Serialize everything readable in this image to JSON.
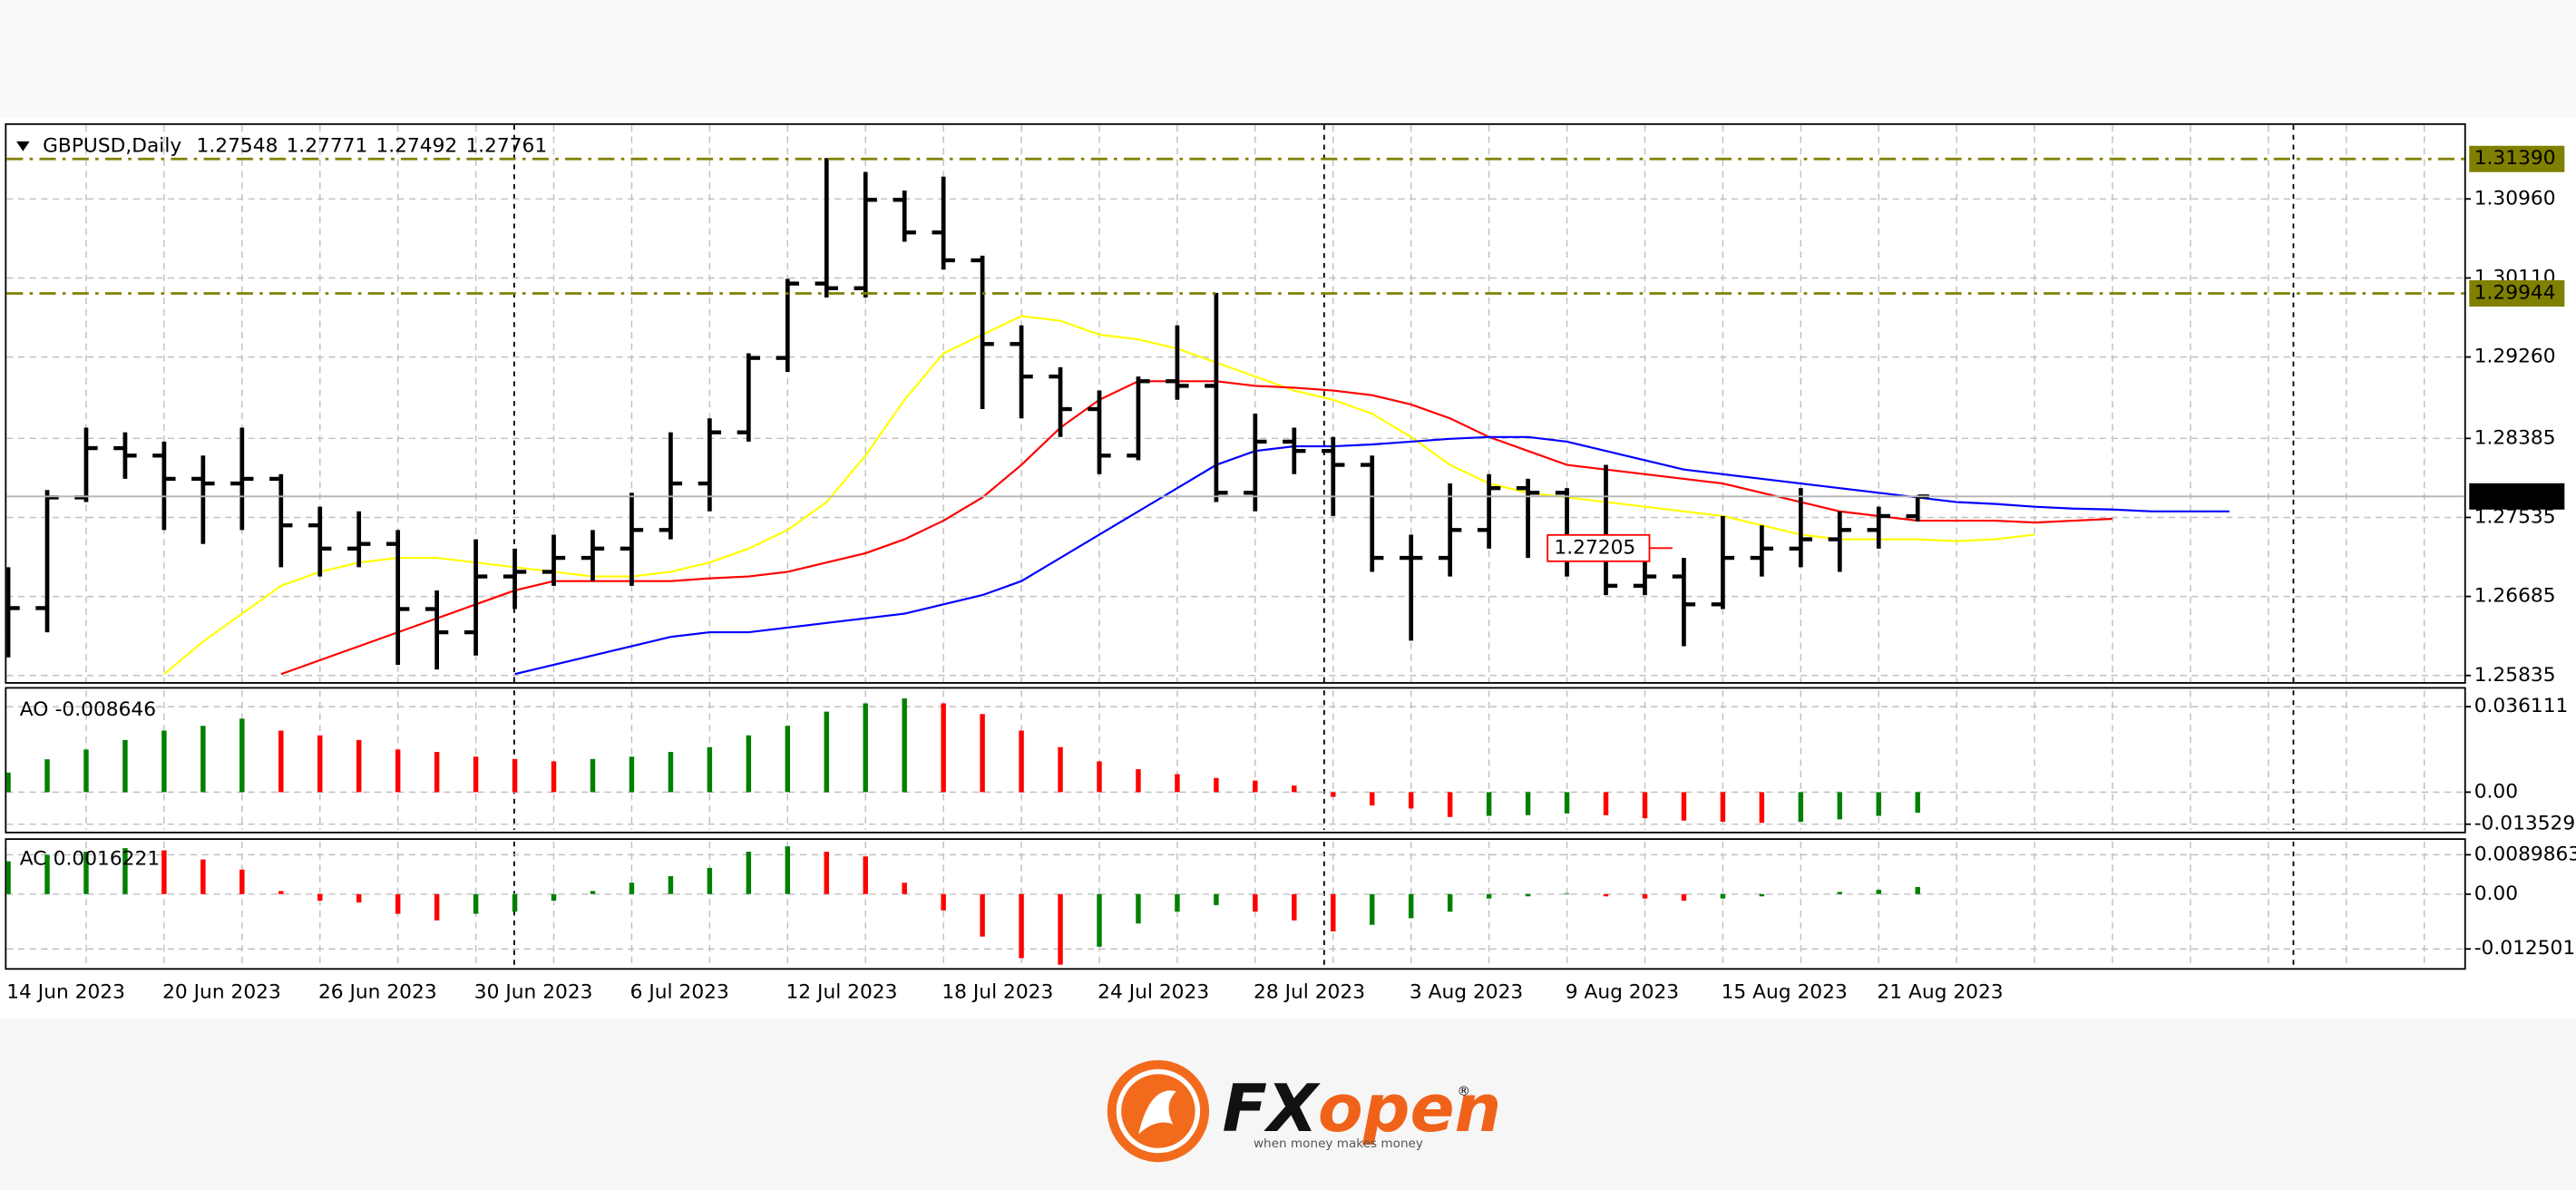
{
  "chart_data": [
    {
      "type": "ohlc",
      "symbol": "GBPUSD,Daily",
      "color": "#000000",
      "grid": true,
      "categories": [
        "14 Jun 2023",
        null,
        null,
        null,
        "20 Jun 2023",
        null,
        null,
        null,
        "26 Jun 2023",
        null,
        null,
        null,
        "30 Jun 2023",
        null,
        null,
        null,
        "6 Jul 2023",
        null,
        null,
        null,
        "12 Jul 2023",
        null,
        null,
        null,
        "18 Jul 2023",
        null,
        null,
        null,
        "24 Jul 2023",
        null,
        null,
        null,
        "28 Jul 2023",
        null,
        null,
        null,
        "3 Aug 2023",
        null,
        null,
        null,
        "9 Aug 2023",
        null,
        null,
        null,
        "15 Aug 2023",
        null,
        null,
        null,
        "21 Aug 2023",
        null,
        null,
        null,
        null,
        null,
        null,
        null,
        null,
        null
      ],
      "open": [
        1.263,
        1.2656,
        1.2775,
        1.2828,
        1.282,
        1.2795,
        1.279,
        1.2795,
        1.2745,
        1.272,
        1.2725,
        1.2655,
        1.263,
        1.269,
        1.2695,
        1.271,
        1.272,
        1.274,
        1.279,
        1.2845,
        1.2925,
        1.3005,
        1.3,
        1.3095,
        1.306,
        1.303,
        1.294,
        1.2905,
        1.287,
        1.282,
        1.29,
        1.2895,
        1.278,
        1.2835,
        1.2825,
        1.281,
        1.271,
        1.271,
        1.274,
        1.2785,
        1.278,
        1.272,
        1.268,
        1.269,
        1.266,
        1.271,
        1.272,
        1.273,
        1.274,
        1.27548,
        null,
        null,
        null,
        null,
        null,
        null,
        null,
        null
      ],
      "high": [
        1.27,
        1.2783,
        1.285,
        1.2845,
        1.2835,
        1.282,
        1.285,
        1.28,
        1.2765,
        1.276,
        1.274,
        1.2675,
        1.273,
        1.272,
        1.2735,
        1.274,
        1.278,
        1.2845,
        1.286,
        1.293,
        1.301,
        1.314,
        1.3125,
        1.3105,
        1.312,
        1.3035,
        1.296,
        1.2915,
        1.289,
        1.2905,
        1.296,
        1.2995,
        1.2865,
        1.285,
        1.284,
        1.282,
        1.2735,
        1.279,
        1.28,
        1.2795,
        1.2785,
        1.281,
        1.272,
        1.271,
        1.2755,
        1.2745,
        1.2785,
        1.276,
        1.2765,
        1.27771,
        null,
        null,
        null,
        null,
        null,
        null,
        null,
        null
      ],
      "low": [
        1.2603,
        1.263,
        1.277,
        1.2795,
        1.274,
        1.2725,
        1.274,
        1.27,
        1.269,
        1.27,
        1.2595,
        1.259,
        1.2605,
        1.2655,
        1.268,
        1.2685,
        1.268,
        1.273,
        1.276,
        1.2835,
        1.291,
        1.299,
        1.299,
        1.305,
        1.302,
        1.287,
        1.286,
        1.284,
        1.28,
        1.2815,
        1.288,
        1.277,
        1.276,
        1.28,
        1.2755,
        1.2695,
        1.2621,
        1.269,
        1.272,
        1.271,
        1.269,
        1.267,
        1.267,
        1.2615,
        1.2655,
        1.269,
        1.27,
        1.2695,
        1.272,
        1.27492,
        null,
        null,
        null,
        null,
        null,
        null,
        null,
        null
      ],
      "close": [
        1.2656,
        1.2775,
        1.2828,
        1.282,
        1.2795,
        1.279,
        1.2795,
        1.2745,
        1.272,
        1.2725,
        1.2655,
        1.263,
        1.269,
        1.2695,
        1.271,
        1.272,
        1.274,
        1.279,
        1.2845,
        1.2925,
        1.3005,
        1.3,
        1.3095,
        1.306,
        1.303,
        1.294,
        1.2905,
        1.287,
        1.282,
        1.29,
        1.2895,
        1.278,
        1.2835,
        1.2825,
        1.281,
        1.271,
        1.271,
        1.274,
        1.2785,
        1.278,
        1.272,
        1.268,
        1.269,
        1.266,
        1.271,
        1.272,
        1.273,
        1.274,
        1.2755,
        1.27761,
        null,
        null,
        null,
        null,
        null,
        null,
        null,
        null
      ],
      "series": [
        {
          "type": "line",
          "color": "#ffff00",
          "values": [
            null,
            null,
            null,
            null,
            1.2585,
            1.262,
            1.265,
            1.268,
            1.2695,
            1.2705,
            1.271,
            1.271,
            1.2705,
            1.27,
            1.2695,
            1.269,
            1.269,
            1.2695,
            1.2705,
            1.272,
            1.274,
            1.277,
            1.282,
            1.288,
            1.293,
            1.295,
            1.297,
            1.2965,
            1.295,
            1.2945,
            1.2935,
            1.292,
            1.2905,
            1.289,
            1.288,
            1.2865,
            1.284,
            1.281,
            1.279,
            1.278,
            1.2775,
            1.277,
            1.2765,
            1.276,
            1.2755,
            1.2745,
            1.2735,
            1.273,
            1.273,
            1.273,
            1.2728,
            1.273,
            1.2735,
            null,
            null,
            null,
            null,
            null
          ]
        },
        {
          "type": "line",
          "color": "#ff0000",
          "values": [
            null,
            null,
            null,
            null,
            null,
            null,
            null,
            1.2585,
            1.26,
            1.2615,
            1.263,
            1.2645,
            1.266,
            1.2675,
            1.2685,
            1.2685,
            1.2685,
            1.2685,
            1.2688,
            1.269,
            1.2695,
            1.2705,
            1.2715,
            1.273,
            1.275,
            1.2775,
            1.281,
            1.285,
            1.288,
            1.29,
            1.29,
            1.29,
            1.2895,
            1.2893,
            1.289,
            1.2885,
            1.2875,
            1.286,
            1.284,
            1.2825,
            1.281,
            1.2805,
            1.28,
            1.2795,
            1.279,
            1.278,
            1.277,
            1.276,
            1.2755,
            1.275,
            1.275,
            1.275,
            1.2748,
            1.275,
            1.2752,
            null,
            null,
            null
          ]
        },
        {
          "type": "line",
          "color": "#0000ff",
          "values": [
            null,
            null,
            null,
            null,
            null,
            null,
            null,
            null,
            null,
            null,
            null,
            null,
            null,
            1.2585,
            1.2595,
            1.2605,
            1.2615,
            1.2625,
            1.263,
            1.263,
            1.2635,
            1.264,
            1.2645,
            1.265,
            1.266,
            1.267,
            1.2685,
            1.271,
            1.2735,
            1.276,
            1.2785,
            1.281,
            1.2825,
            1.283,
            1.283,
            1.2832,
            1.2835,
            1.2838,
            1.284,
            1.284,
            1.2835,
            1.2825,
            1.2815,
            1.2805,
            1.28,
            1.2795,
            1.279,
            1.2785,
            1.278,
            1.2775,
            1.277,
            1.2768,
            1.2765,
            1.2763,
            1.2762,
            1.276,
            1.276,
            1.276
          ]
        }
      ],
      "ylim": [
        1.25764,
        1.31756
      ],
      "yticks": [
        {
          "value": 1.3096,
          "label": "1.30960"
        },
        {
          "value": 1.3011,
          "label": "1.30110"
        },
        {
          "value": 1.2926,
          "label": "1.29260"
        },
        1.28385,
        1.27535,
        1.26685,
        1.25835
      ],
      "levels": [
        {
          "value": 1.3139,
          "label": "1.31390",
          "color": "#808000"
        },
        {
          "value": 1.29944,
          "label": "1.29944",
          "color": "#808000"
        }
      ],
      "price_labels": [
        1.27205
      ],
      "price_label_color": "#ff0000"
    },
    {
      "type": "histogram",
      "name": "AO",
      "up_color": "#008000",
      "down_color": "#ff0000",
      "values": [
        0.0083,
        0.0139,
        0.018,
        0.022,
        0.026,
        0.028,
        0.031,
        0.026,
        0.024,
        0.022,
        0.018,
        0.017,
        0.015,
        0.014,
        0.013,
        0.014,
        0.015,
        0.017,
        0.019,
        0.024,
        0.028,
        0.034,
        0.0375,
        0.0396,
        0.0375,
        0.033,
        0.026,
        0.019,
        0.013,
        0.0097,
        0.0076,
        0.006,
        0.0049,
        0.0028,
        -0.002,
        -0.0056,
        -0.0069,
        -0.0105,
        -0.01,
        -0.0097,
        -0.009,
        -0.0097,
        -0.011,
        -0.012,
        -0.0125,
        -0.013,
        -0.0125,
        -0.0115,
        -0.01,
        -0.008646,
        null,
        null,
        null,
        null,
        null,
        null,
        null,
        null
      ],
      "ylim": [
        -0.016,
        0.043
      ],
      "yticks": [
        0.036111,
        {
          "value": 0,
          "label": "0.00"
        },
        -0.013529
      ]
    },
    {
      "type": "histogram",
      "name": "AC",
      "up_color": "#008000",
      "down_color": "#ff0000",
      "values": [
        0.0075,
        0.009,
        0.0097,
        0.0105,
        0.01,
        0.0079,
        0.0056,
        0.0007,
        -0.0015,
        -0.0019,
        -0.0045,
        -0.006,
        -0.0045,
        -0.004,
        -0.0015,
        0.0007,
        0.0026,
        0.0041,
        0.006,
        0.0097,
        0.0109,
        0.0097,
        0.0086,
        0.0026,
        -0.0037,
        -0.0097,
        -0.0146,
        -0.0161,
        -0.012,
        -0.0067,
        -0.004,
        -0.0025,
        -0.004,
        -0.006,
        -0.0085,
        -0.007,
        -0.0055,
        -0.004,
        -0.001,
        -0.0005,
        0.0002,
        -0.0005,
        -0.001,
        -0.0015,
        -0.001,
        -0.0005,
        0.0,
        0.0005,
        0.001,
        0.0016221,
        null,
        null,
        null,
        null,
        null,
        null,
        null,
        null
      ],
      "ylim": [
        -0.0165,
        0.012
      ],
      "yticks": [
        0.0089863,
        {
          "value": 0,
          "label": "0.00"
        },
        -0.012501
      ]
    }
  ],
  "logo": {
    "brand_prefix": "FX",
    "brand_suffix": "open",
    "registered": "®",
    "tagline": "when money makes money"
  }
}
